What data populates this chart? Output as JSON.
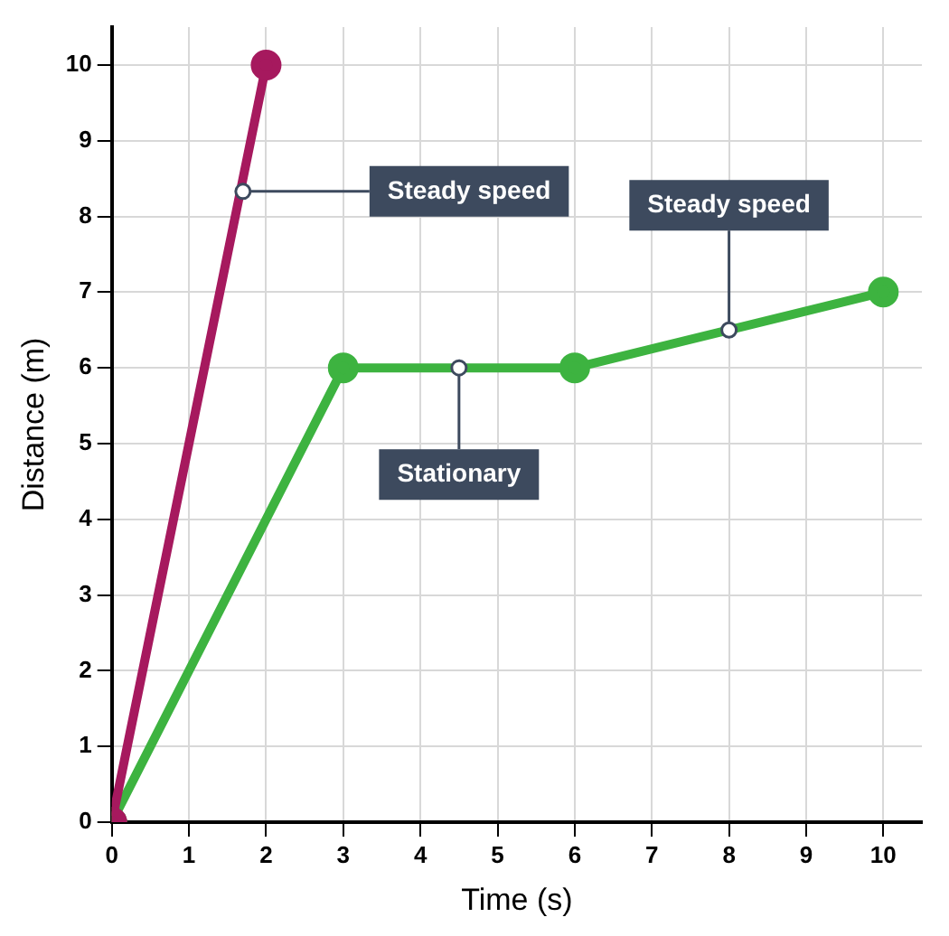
{
  "chart_data": {
    "type": "line",
    "xlabel": "Time (s)",
    "ylabel": "Distance (m)",
    "xlim": [
      0,
      10.5
    ],
    "ylim": [
      0,
      10.5
    ],
    "xticks": [
      0,
      1,
      2,
      3,
      4,
      5,
      6,
      7,
      8,
      9,
      10
    ],
    "yticks": [
      0,
      1,
      2,
      3,
      4,
      5,
      6,
      7,
      8,
      9,
      10
    ],
    "grid": true,
    "marker": "circle",
    "line_style": "solid",
    "series": [
      {
        "color": "#a6195e",
        "x": [
          0,
          2
        ],
        "values": [
          0,
          10
        ]
      },
      {
        "color": "#3db340",
        "x": [
          0,
          3,
          6,
          10
        ],
        "values": [
          0,
          6,
          6,
          7
        ]
      }
    ],
    "annotations": [
      {
        "text": "Steady speed",
        "x": 1.7,
        "y": 8.33
      },
      {
        "text": "Stationary",
        "x": 4.5,
        "y": 6
      },
      {
        "text": "Steady speed",
        "x": 8,
        "y": 6.5
      }
    ]
  }
}
